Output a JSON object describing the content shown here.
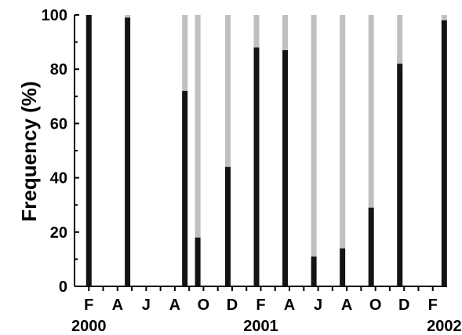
{
  "chart_data": {
    "type": "bar",
    "stacked": true,
    "ylabel": "Frequency  (%)",
    "xlabel": "",
    "ylim": [
      0,
      100
    ],
    "y_ticks": [
      0,
      20,
      40,
      60,
      80,
      100
    ],
    "x_range": [
      0,
      26
    ],
    "month_ticks": [
      {
        "label": "F",
        "x": 1
      },
      {
        "label": "A",
        "x": 3
      },
      {
        "label": "J",
        "x": 5
      },
      {
        "label": "A",
        "x": 7
      },
      {
        "label": "O",
        "x": 9
      },
      {
        "label": "D",
        "x": 11
      },
      {
        "label": "F",
        "x": 13
      },
      {
        "label": "A",
        "x": 15
      },
      {
        "label": "J",
        "x": 17
      },
      {
        "label": "A",
        "x": 19
      },
      {
        "label": "O",
        "x": 21
      },
      {
        "label": "D",
        "x": 23
      },
      {
        "label": "F",
        "x": 25
      }
    ],
    "year_labels": [
      {
        "label": "2000",
        "x": 1
      },
      {
        "label": "2001",
        "x": 13
      },
      {
        "label": "2002",
        "x": 25.8
      }
    ],
    "colors": {
      "dark": "#141414",
      "light": "#c0c0c0"
    },
    "bars": [
      {
        "x": 1.0,
        "dark": 100,
        "light": 0
      },
      {
        "x": 3.7,
        "dark": 99,
        "light": 1
      },
      {
        "x": 7.7,
        "dark": 72,
        "light": 28
      },
      {
        "x": 8.6,
        "dark": 18,
        "light": 82
      },
      {
        "x": 10.7,
        "dark": 44,
        "light": 56
      },
      {
        "x": 12.7,
        "dark": 88,
        "light": 12
      },
      {
        "x": 14.7,
        "dark": 87,
        "light": 13
      },
      {
        "x": 16.7,
        "dark": 11,
        "light": 89
      },
      {
        "x": 18.7,
        "dark": 14,
        "light": 86
      },
      {
        "x": 20.7,
        "dark": 29,
        "light": 71
      },
      {
        "x": 22.7,
        "dark": 82,
        "light": 18
      },
      {
        "x": 25.8,
        "dark": 98,
        "light": 2
      }
    ]
  }
}
